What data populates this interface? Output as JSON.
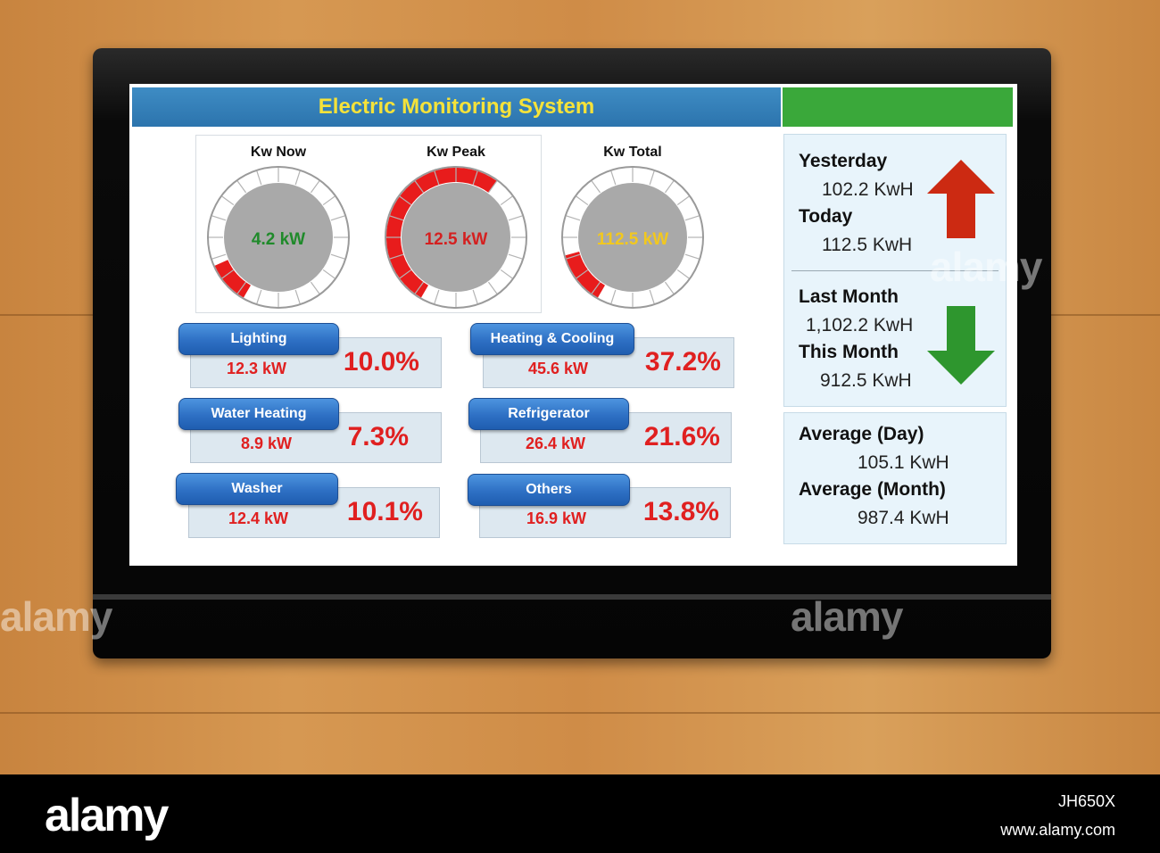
{
  "header": {
    "title": "Electric Monitoring System"
  },
  "gauges": [
    {
      "label": "Kw Now",
      "value": "4.2 kW",
      "value_color": "#1f8a2a",
      "fill_fraction": 0.12
    },
    {
      "label": "Kw Peak",
      "value": "12.5 kW",
      "value_color": "#d42020",
      "fill_fraction": 0.62
    },
    {
      "label": "Kw Total",
      "value": "112.5 kW",
      "value_color": "#f2c81e",
      "fill_fraction": 0.15
    }
  ],
  "loads": [
    {
      "name": "Lighting",
      "kw": "12.3 kW",
      "pct": "10.0%"
    },
    {
      "name": "Heating & Cooling",
      "kw": "45.6 kW",
      "pct": "37.2%"
    },
    {
      "name": "Water Heating",
      "kw": "8.9 kW",
      "pct": "7.3%"
    },
    {
      "name": "Refrigerator",
      "kw": "26.4 kW",
      "pct": "21.6%"
    },
    {
      "name": "Washer",
      "kw": "12.4 kW",
      "pct": "10.1%"
    },
    {
      "name": "Others",
      "kw": "16.9 kW",
      "pct": "13.8%"
    }
  ],
  "daily": {
    "yesterday_label": "Yesterday",
    "yesterday_value": "102.2 KwH",
    "today_label": "Today",
    "today_value": "112.5 KwH",
    "trend_icon": "arrow-up-icon",
    "trend_color": "#cc2a12"
  },
  "monthly": {
    "last_month_label": "Last Month",
    "last_month_value": "1,102.2 KwH",
    "this_month_label": "This Month",
    "this_month_value": "912.5 KwH",
    "trend_icon": "arrow-down-icon",
    "trend_color": "#2e962e"
  },
  "averages": {
    "day_label": "Average (Day)",
    "day_value": "105.1 KwH",
    "month_label": "Average (Month)",
    "month_value": "987.4 KwH"
  },
  "colors": {
    "title_text": "#f5e23a",
    "title_bar": "#2c74ad",
    "accent_green": "#3aa83a",
    "alert_red": "#e02020"
  },
  "watermark": {
    "text": "alamy"
  },
  "footer": {
    "logo": "alamy",
    "image_id": "JH650X",
    "url": "www.alamy.com"
  }
}
